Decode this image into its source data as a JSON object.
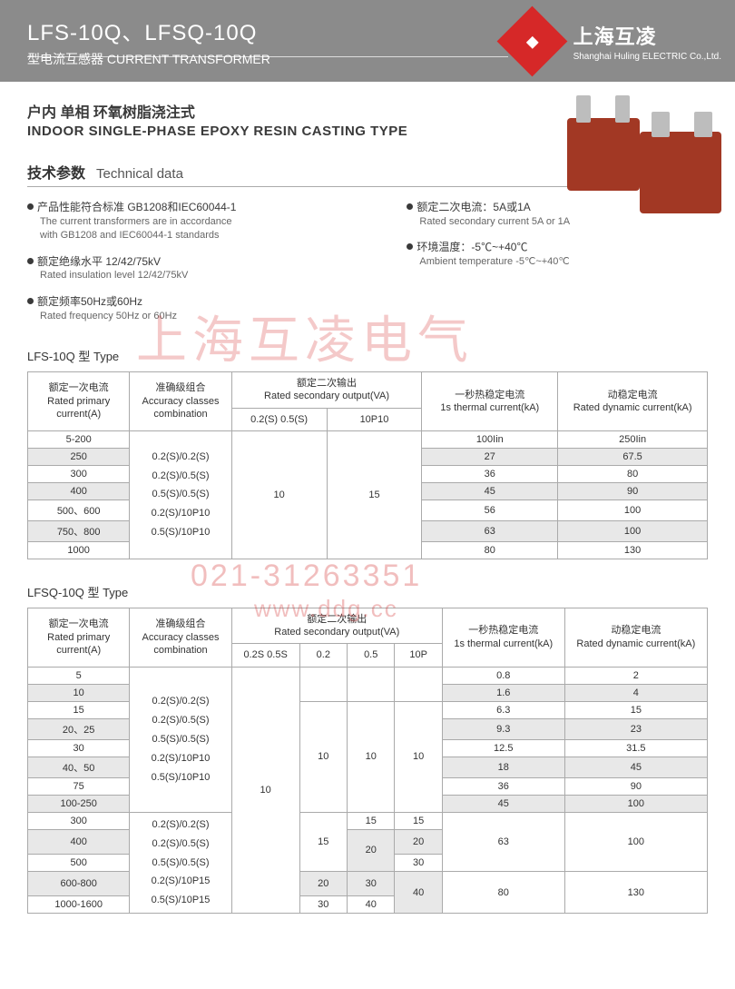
{
  "banner": {
    "title_main": "LFS-10Q、LFSQ-10Q",
    "title_sub": "型电流互感器 CURRENT TRANSFORMER",
    "logo_cn": "上海互凌",
    "logo_en": "Shanghai Huling ELECTRIC Co.,Ltd."
  },
  "subtitle": {
    "cn": "户内 单相 环氧树脂浇注式",
    "en": "INDOOR SINGLE-PHASE EPOXY RESIN CASTING TYPE"
  },
  "sect": {
    "cn": "技术参数",
    "en": "Technical data"
  },
  "bullets_left": [
    {
      "cn": "产品性能符合标准 GB1208和IEC60044-1",
      "en1": "The current transformers are in accordance",
      "en2": "with GB1208 and IEC60044-1 standards"
    },
    {
      "cn": "额定绝缘水平 12/42/75kV",
      "en1": "Rated insulation level 12/42/75kV",
      "en2": ""
    },
    {
      "cn": "额定频率50Hz或60Hz",
      "en1": "Rated frequency 50Hz or 60Hz",
      "en2": ""
    }
  ],
  "bullets_right": [
    {
      "cn": "额定二次电流：5A或1A",
      "en1": "Rated secondary current 5A or 1A",
      "en2": ""
    },
    {
      "cn": "环境温度：-5℃~+40℃",
      "en1": "Ambient temperature -5℃~+40℃",
      "en2": ""
    }
  ],
  "watermark1": "上海互凌电气",
  "watermark2": "021-31263351",
  "watermark3": "www.ddg.cc",
  "colors": {
    "banner_bg": "#8b8b8b",
    "brand_red": "#d62828",
    "product_red": "#a23824",
    "row_alt": "#e8e8e8",
    "border": "#aaaaaa",
    "wm": "rgba(210,40,40,0.25)"
  },
  "table1": {
    "label": "LFS-10Q 型 Type",
    "headers": {
      "c1": "额定一次电流\nRated primary current(A)",
      "c2": "准确级组合\nAccuracy classes combination",
      "c3": "额定二次输出\nRated secondary output(VA)",
      "c3a": "0.2(S)  0.5(S)",
      "c3b": "10P10",
      "c4": "一秒热稳定电流\n1s thermal current(kA)",
      "c5": "动稳定电流\nRated dynamic current(kA)"
    },
    "accuracy_block": "0.2(S)/0.2(S)\n0.2(S)/0.5(S)\n0.5(S)/0.5(S)\n0.2(S)/10P10\n0.5(S)/10P10",
    "rows": [
      {
        "primary": "5-200",
        "sec_a": null,
        "sec_b": null,
        "thermal": "100Iin",
        "dynamic": "250Iin"
      },
      {
        "primary": "250",
        "sec_a": null,
        "sec_b": null,
        "thermal": "27",
        "dynamic": "67.5"
      },
      {
        "primary": "300",
        "sec_a": "10",
        "sec_b": "15",
        "thermal": "36",
        "dynamic": "80"
      },
      {
        "primary": "400",
        "sec_a": null,
        "sec_b": null,
        "thermal": "45",
        "dynamic": "90"
      },
      {
        "primary": "500、600",
        "sec_a": null,
        "sec_b": null,
        "thermal": "56",
        "dynamic": "100"
      },
      {
        "primary": "750、800",
        "sec_a": null,
        "sec_b": null,
        "thermal": "63",
        "dynamic": "100"
      },
      {
        "primary": "1000",
        "sec_a": null,
        "sec_b": null,
        "thermal": "80",
        "dynamic": "130"
      }
    ],
    "col_widths": [
      "15%",
      "15%",
      "14%",
      "14%",
      "20%",
      "22%"
    ]
  },
  "table2": {
    "label": "LFSQ-10Q 型 Type",
    "headers": {
      "c1": "额定一次电流\nRated primary current(A)",
      "c2": "准确级组合\nAccuracy classes combination",
      "c3": "额定二次输出\nRated secondary output(VA)",
      "c3a": "0.2S 0.5S",
      "c3b": "0.2",
      "c3c": "0.5",
      "c3d": "10P",
      "c4": "一秒热稳定电流\n1s thermal current(kA)",
      "c5": "动稳定电流\nRated dynamic current(kA)"
    },
    "accuracy_block1": "0.2(S)/0.2(S)\n0.2(S)/0.5(S)\n0.5(S)/0.5(S)\n0.2(S)/10P10\n0.5(S)/10P10",
    "accuracy_block2": "0.2(S)/0.2(S)\n0.2(S)/0.5(S)\n0.5(S)/0.5(S)\n0.2(S)/10P15\n0.5(S)/10P15",
    "rows_top": [
      {
        "primary": "5",
        "thermal": "0.8",
        "dynamic": "2"
      },
      {
        "primary": "10",
        "thermal": "1.6",
        "dynamic": "4"
      },
      {
        "primary": "15",
        "thermal": "6.3",
        "dynamic": "15"
      },
      {
        "primary": "20、25",
        "thermal": "9.3",
        "dynamic": "23"
      },
      {
        "primary": "30",
        "thermal": "12.5",
        "dynamic": "31.5"
      },
      {
        "primary": "40、50",
        "thermal": "18",
        "dynamic": "45"
      },
      {
        "primary": "75",
        "thermal": "36",
        "dynamic": "90"
      },
      {
        "primary": "100-250",
        "thermal": "45",
        "dynamic": "100"
      }
    ],
    "sec_top": {
      "a": "10",
      "b": "10",
      "c": "10",
      "d": "10"
    },
    "rows_bot": [
      {
        "primary": "300",
        "s02": null,
        "s05": "15",
        "s10p": "15"
      },
      {
        "primary": "400",
        "s02": "15",
        "s05": "20",
        "s10p": "20"
      },
      {
        "primary": "500",
        "s02": null,
        "s05": null,
        "s10p": "30"
      },
      {
        "primary": "600-800",
        "s02": "20",
        "s05": "30",
        "s10p": "40"
      },
      {
        "primary": "1000-1600",
        "s02": "30",
        "s05": "40",
        "s10p": null
      }
    ],
    "bot_thermal_dynamic": [
      {
        "thermal": "63",
        "dynamic": "100",
        "span": 3
      },
      {
        "thermal": "80",
        "dynamic": "130",
        "span": 2
      }
    ],
    "col_widths": [
      "15%",
      "15%",
      "10%",
      "7%",
      "7%",
      "7%",
      "18%",
      "21%"
    ]
  }
}
